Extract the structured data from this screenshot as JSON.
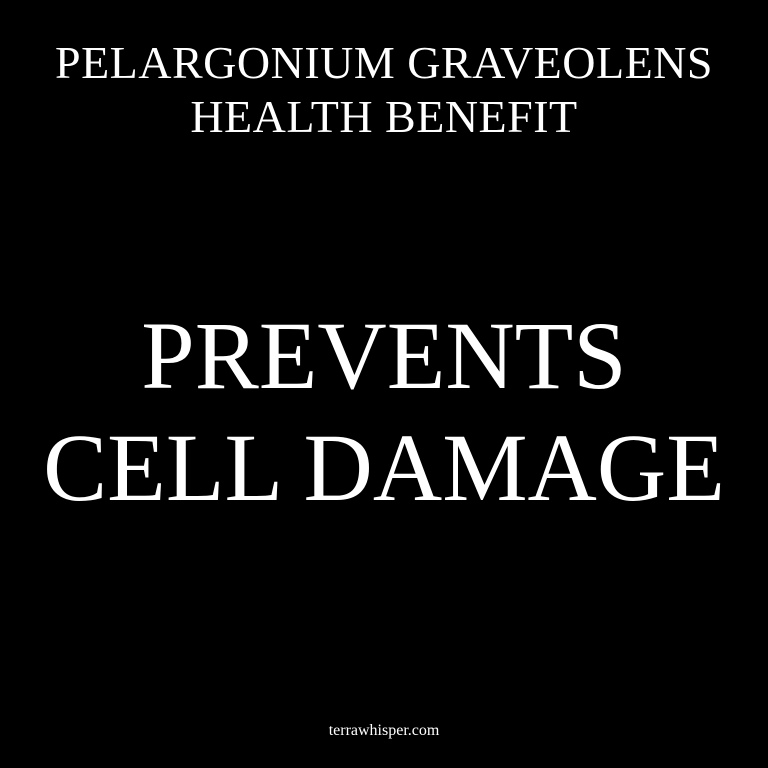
{
  "header": {
    "line1": "PELARGONIUM GRAVEOLENS",
    "line2": "HEALTH BENEFIT"
  },
  "headline": {
    "line1": "PREVENTS",
    "line2": "CELL DAMAGE"
  },
  "footer": {
    "site": "terrawhisper.com"
  },
  "colors": {
    "background": "#000000",
    "text": "#ffffff"
  }
}
